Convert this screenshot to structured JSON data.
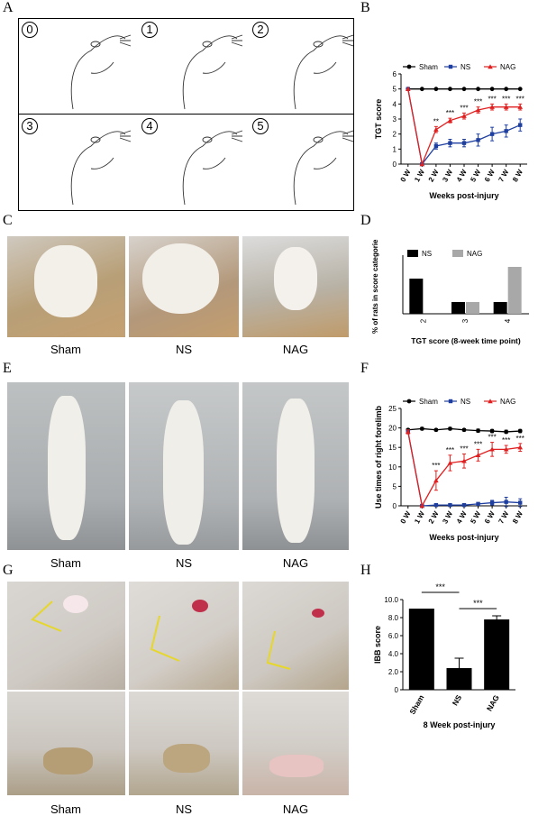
{
  "panels": {
    "A": "A",
    "B": "B",
    "C": "C",
    "D": "D",
    "E": "E",
    "F": "F",
    "G": "G",
    "H": "H"
  },
  "panelA": {
    "scores": [
      "0",
      "1",
      "2",
      "3",
      "4",
      "5"
    ]
  },
  "panelC": {
    "captions": [
      "Sham",
      "NS",
      "NAG"
    ]
  },
  "panelE": {
    "captions": [
      "Sham",
      "NS",
      "NAG"
    ]
  },
  "panelG": {
    "captions": [
      "Sham",
      "NS",
      "NAG"
    ]
  },
  "colors": {
    "sham": "#000000",
    "ns": "#1f3fa0",
    "nag": "#e02020",
    "gray": "#a8a8a8"
  },
  "chart_data": [
    {
      "id": "B",
      "type": "line",
      "ylabel": "TGT score",
      "xlabel": "Weeks post-injury",
      "categories": [
        "0 W",
        "1 W",
        "2 W",
        "3 W",
        "4 W",
        "5 W",
        "6 W",
        "7 W",
        "8 W"
      ],
      "ylim": [
        0,
        6
      ],
      "yticks": [
        0,
        1,
        2,
        3,
        4,
        5,
        6
      ],
      "legend": [
        "Sham",
        "NS",
        "NAG"
      ],
      "series": [
        {
          "name": "Sham",
          "values": [
            5,
            5,
            5,
            5,
            5,
            5,
            5,
            5,
            5
          ],
          "err": [
            0,
            0,
            0,
            0,
            0,
            0,
            0,
            0,
            0
          ]
        },
        {
          "name": "NS",
          "values": [
            5,
            0,
            1.2,
            1.4,
            1.4,
            1.6,
            2.0,
            2.2,
            2.6
          ],
          "err": [
            0,
            0,
            0.2,
            0.25,
            0.25,
            0.4,
            0.45,
            0.4,
            0.4
          ]
        },
        {
          "name": "NAG",
          "values": [
            5,
            0,
            2.3,
            2.9,
            3.2,
            3.6,
            3.8,
            3.8,
            3.8
          ],
          "err": [
            0,
            0,
            0.2,
            0.15,
            0.2,
            0.2,
            0.2,
            0.2,
            0.2
          ]
        }
      ],
      "annotations": [
        "",
        "",
        "**",
        "***",
        "***",
        "***",
        "***",
        "***",
        "***"
      ]
    },
    {
      "id": "D",
      "type": "bar",
      "ylabel": "% of rats in score categories",
      "xlabel": "TGT score (8-week time point)",
      "categories": [
        "2",
        "3",
        "4"
      ],
      "ylim": [
        0,
        100
      ],
      "legend": [
        "NS",
        "NAG"
      ],
      "series": [
        {
          "name": "NS",
          "values": [
            60,
            20,
            20
          ]
        },
        {
          "name": "NAG",
          "values": [
            0,
            20,
            80
          ]
        }
      ]
    },
    {
      "id": "F",
      "type": "line",
      "ylabel": "Use times of right forelimb",
      "xlabel": "Weeks post-injury",
      "categories": [
        "0 W",
        "1 W",
        "2 W",
        "3 W",
        "4 W",
        "5 W",
        "6 W",
        "7 W",
        "8 W"
      ],
      "ylim": [
        0,
        25
      ],
      "yticks": [
        0,
        5,
        10,
        15,
        20,
        25
      ],
      "legend": [
        "Sham",
        "NS",
        "NAG"
      ],
      "series": [
        {
          "name": "Sham",
          "values": [
            19.5,
            19.8,
            19.5,
            19.8,
            19.5,
            19.3,
            19.2,
            19.0,
            19.2
          ],
          "err": [
            0.3,
            0.3,
            0.3,
            0.3,
            0.3,
            0.4,
            0.4,
            0.4,
            0.4
          ]
        },
        {
          "name": "NS",
          "values": [
            19,
            0,
            0.2,
            0.2,
            0.2,
            0.5,
            0.8,
            1.0,
            0.8
          ],
          "err": [
            0.5,
            0,
            0.2,
            0.2,
            0.2,
            0.3,
            0.6,
            1.2,
            1.0
          ]
        },
        {
          "name": "NAG",
          "values": [
            19,
            0,
            6.5,
            11,
            11.5,
            13,
            14.5,
            14.5,
            15
          ],
          "err": [
            0.5,
            0,
            2.5,
            2,
            1.8,
            1.5,
            1.8,
            1,
            1
          ]
        }
      ],
      "annotations": [
        "",
        "",
        "***",
        "***",
        "***",
        "***",
        "***",
        "***",
        "***"
      ]
    },
    {
      "id": "H",
      "type": "bar",
      "ylabel": "IBB score",
      "xlabel": "8 Week post-injury",
      "categories": [
        "Sham",
        "NS",
        "NAG"
      ],
      "ylim": [
        0,
        10
      ],
      "yticks": [
        "0",
        "2.0",
        "4.0",
        "6.0",
        "8.0",
        "10.0"
      ],
      "yvals": [
        0,
        2,
        4,
        6,
        8,
        10
      ],
      "values": [
        9.0,
        2.4,
        7.8
      ],
      "err": [
        0,
        1.1,
        0.4
      ],
      "annotations": [
        {
          "between": [
            "Sham",
            "NS"
          ],
          "label": "***"
        },
        {
          "between": [
            "NS",
            "NAG"
          ],
          "label": "***"
        }
      ]
    }
  ]
}
